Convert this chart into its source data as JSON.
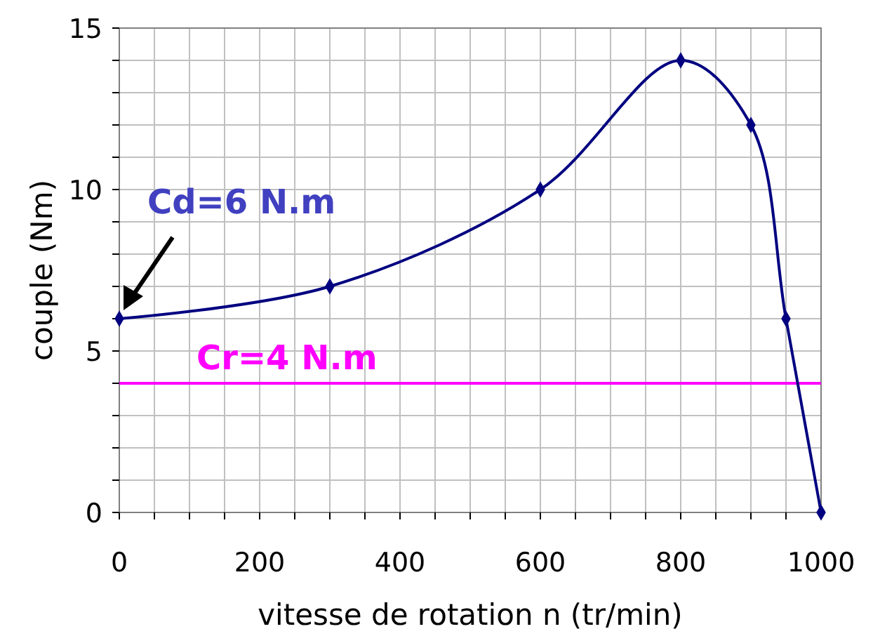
{
  "chart_data": {
    "type": "line",
    "xlabel": "vitesse de rotation n (tr/min)",
    "ylabel": "couple (Nm)",
    "x": [
      0,
      300,
      600,
      800,
      900,
      950,
      1000
    ],
    "series": [
      {
        "color": "#000080",
        "values": [
          6,
          7,
          10,
          14,
          12,
          6,
          0
        ]
      }
    ],
    "xlim": [
      0,
      1000
    ],
    "xticks": [
      0,
      {
        "value": 50,
        "label": null
      },
      200,
      {
        "value": 100,
        "label": null
      },
      {
        "value": 150,
        "label": null
      },
      {
        "value": 250,
        "label": null
      },
      {
        "value": 300,
        "label": null
      },
      {
        "value": 350,
        "label": null
      },
      400,
      {
        "value": 450,
        "label": null
      },
      {
        "value": 500,
        "label": null
      },
      {
        "value": 550,
        "label": null
      },
      600,
      {
        "value": 650,
        "label": null
      },
      {
        "value": 700,
        "label": null
      },
      {
        "value": 750,
        "label": null
      },
      800,
      {
        "value": 850,
        "label": null
      },
      {
        "value": 900,
        "label": null
      },
      {
        "value": 950,
        "label": null
      },
      1000
    ],
    "ylim": [
      0,
      15
    ],
    "yticks": [
      0,
      {
        "value": 1,
        "label": null
      },
      {
        "value": 2,
        "label": null
      },
      {
        "value": 3,
        "label": null
      },
      {
        "value": 4,
        "label": null
      },
      5,
      {
        "value": 6,
        "label": null
      },
      {
        "value": 7,
        "label": null
      },
      {
        "value": 8,
        "label": null
      },
      {
        "value": 9,
        "label": null
      },
      10,
      {
        "value": 11,
        "label": null
      },
      {
        "value": 12,
        "label": null
      },
      {
        "value": 13,
        "label": null
      },
      {
        "value": 14,
        "label": null
      },
      15
    ],
    "grid": true,
    "marker": "diamond",
    "line_style": "solid",
    "ref_lines": [
      {
        "axis": "y",
        "value": 4,
        "label": "Cr=4 N.m",
        "color": "#ff00ff"
      }
    ],
    "annotations": [
      {
        "text": "Cd=6 N.m",
        "x": 0,
        "y": 6
      }
    ]
  }
}
